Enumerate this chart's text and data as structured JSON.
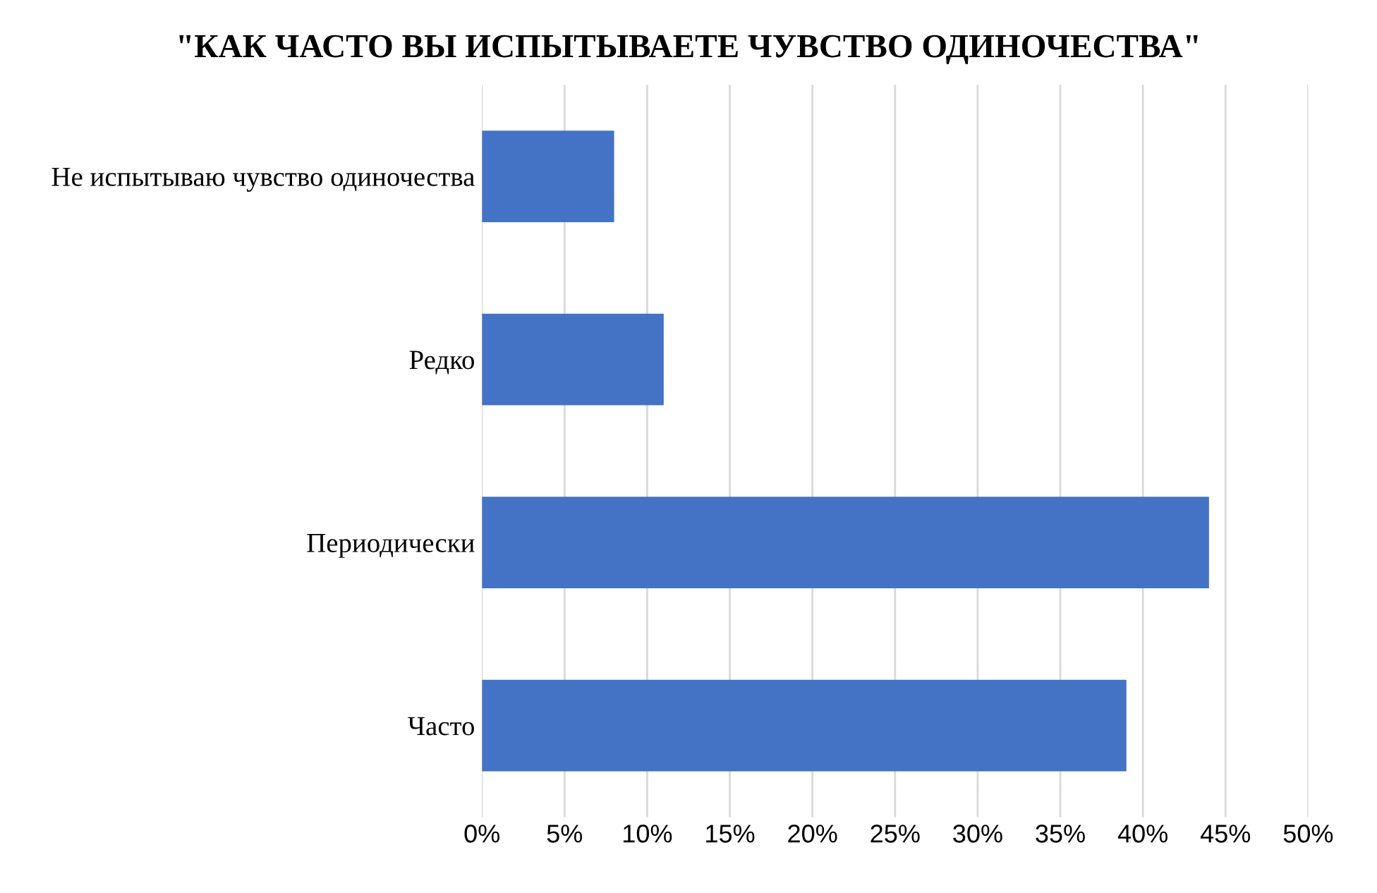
{
  "chart_data": {
    "type": "bar",
    "orientation": "horizontal",
    "title": "\"КАК ЧАСТО ВЫ ИСПЫТЫВАЕТЕ ЧУВСТВО ОДИНОЧЕСТВА\"",
    "categories": [
      "Не испытываю чувство одиночества",
      "Редко",
      "Периодически",
      "Часто"
    ],
    "values": [
      8,
      11,
      44,
      39
    ],
    "color": "#4472c4",
    "xlim": [
      0,
      50
    ],
    "xticks": [
      {
        "value": 0,
        "label": "0%"
      },
      {
        "value": 5,
        "label": "5%"
      },
      {
        "value": 10,
        "label": "10%"
      },
      {
        "value": 15,
        "label": "15%"
      },
      {
        "value": 20,
        "label": "20%"
      },
      {
        "value": 25,
        "label": "25%"
      },
      {
        "value": 30,
        "label": "30%"
      },
      {
        "value": 35,
        "label": "35%"
      },
      {
        "value": 40,
        "label": "40%"
      },
      {
        "value": 45,
        "label": "45%"
      },
      {
        "value": 50,
        "label": "50%"
      }
    ],
    "grid": "x"
  }
}
